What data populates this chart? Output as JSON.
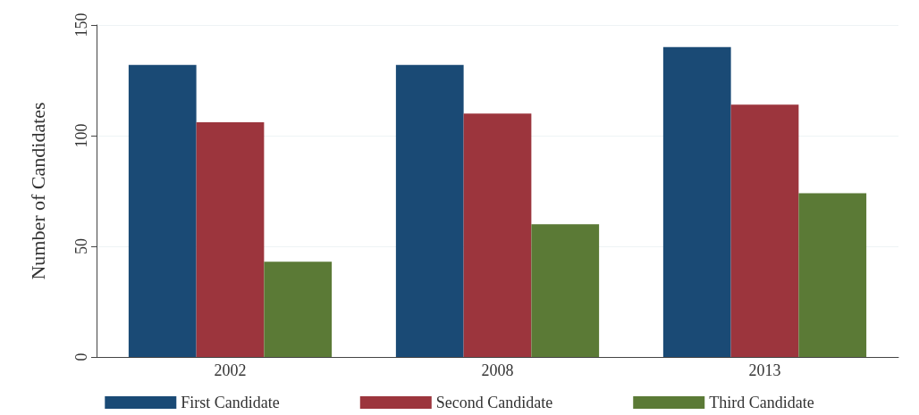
{
  "chart_data": {
    "type": "bar",
    "ylabel": "Number of Candidates",
    "categories": [
      "2002",
      "2008",
      "2013"
    ],
    "series": [
      {
        "name": "First Candidate",
        "color": "#1a4a75",
        "values": [
          132,
          132,
          140
        ]
      },
      {
        "name": "Second Candidate",
        "color": "#9c353d",
        "values": [
          106,
          110,
          114
        ]
      },
      {
        "name": "Third Candidate",
        "color": "#5b7a36",
        "values": [
          43,
          60,
          74
        ]
      }
    ],
    "ylim": [
      0,
      150
    ],
    "yticks": [
      0,
      50,
      100,
      150
    ],
    "grid": "y",
    "legend": "bottom"
  }
}
